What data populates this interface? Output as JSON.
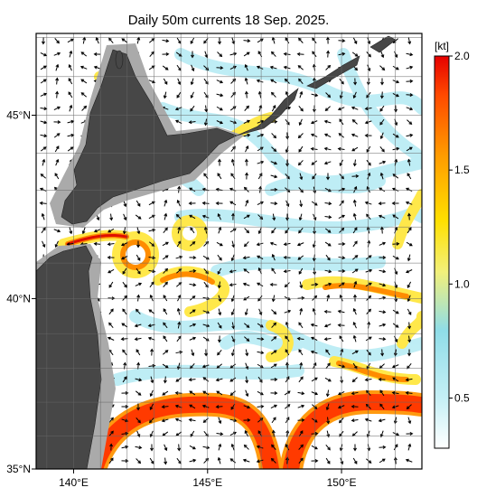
{
  "title": "Daily 50m currents 18 Sep. 2025.",
  "map": {
    "lon_extent": [
      138.6,
      153.0
    ],
    "lat_extent": [
      35,
      47.1
    ],
    "lon_ticks": [
      {
        "value": 140,
        "label": "140°E"
      },
      {
        "value": 145,
        "label": "145°E"
      },
      {
        "value": 150,
        "label": "150°E"
      }
    ],
    "lat_ticks": [
      {
        "value": 35,
        "label": "35°N"
      },
      {
        "value": 40,
        "label": "40°N"
      },
      {
        "value": 45,
        "label": "45°N"
      }
    ]
  },
  "colorbar": {
    "unit": "[kt]",
    "lim": [
      0.28,
      2.0
    ],
    "ticks": [
      {
        "value": 0.5,
        "label": "0.5"
      },
      {
        "value": 1,
        "label": "1.0"
      },
      {
        "value": 1.5,
        "label": "1.5"
      },
      {
        "value": 2,
        "label": "2.0"
      }
    ]
  }
}
